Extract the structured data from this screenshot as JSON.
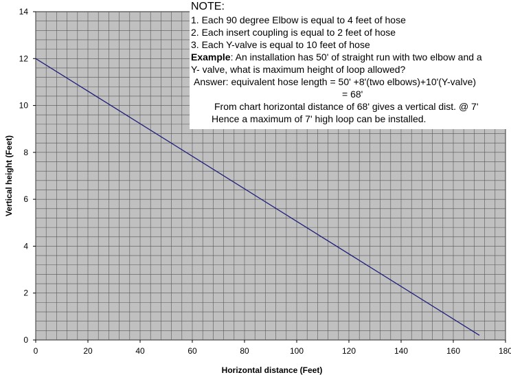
{
  "chart_data": {
    "type": "line",
    "title": "",
    "xlabel": "Horizontal distance (Feet)",
    "ylabel": "Vertical height (Feet)",
    "xlim": [
      0,
      180
    ],
    "ylim": [
      0,
      14
    ],
    "x_ticks": [
      "0",
      "20",
      "40",
      "60",
      "80",
      "100",
      "120",
      "140",
      "160",
      "180"
    ],
    "y_ticks": [
      "0",
      "2",
      "4",
      "6",
      "8",
      "10",
      "12",
      "14"
    ],
    "grid": true,
    "series": [
      {
        "x": [
          0,
          170
        ],
        "y": [
          12,
          0.2
        ]
      }
    ],
    "colors": {
      "plot_bg": "#c0c0c0",
      "grid": "#555555",
      "line": "#1f1f7a"
    }
  },
  "note": {
    "title": "NOTE:",
    "item1": "1. Each 90 degree Elbow is equal to 4 feet of hose",
    "item2": "2. Each insert coupling is equal to 2 feet of hose",
    "item3": "3. Each Y-valve is equal to 10 feet of hose",
    "example_label": "Example",
    "example_text": ": An installation has 50' of straight run with two elbow and a",
    "example_text2": "Y- valve, what is maximum height of loop allowed?",
    "answer_line1": "Answer: equivalent hose length = 50' +8'(two elbows)+10'(Y-valve)",
    "answer_line2": "= 68'",
    "chart_line": "From chart horizontal distance of 68' gives a vertical dist. @ 7'",
    "conclusion": "Hence a maximum of 7' high loop can be installed."
  }
}
